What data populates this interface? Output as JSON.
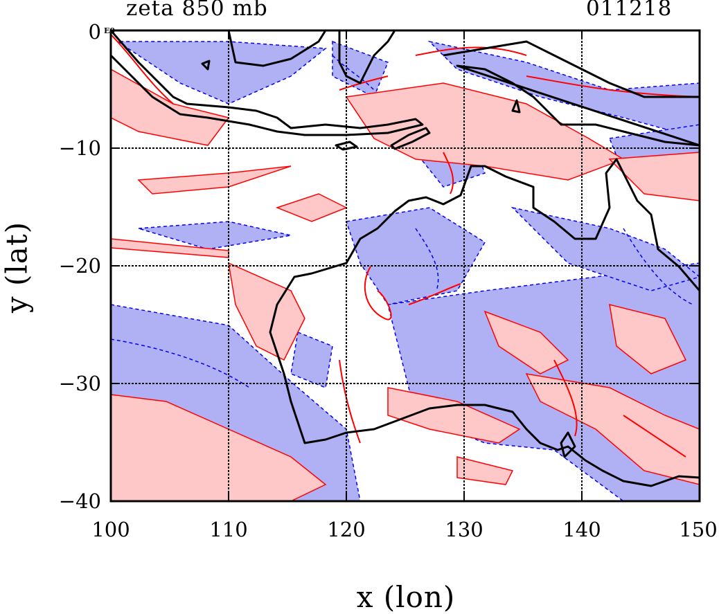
{
  "header": {
    "field_title": "zeta 850 mb",
    "date_code": "011218",
    "exponent_tag": "E0"
  },
  "axes": {
    "xlabel": "x (lon)",
    "ylabel": "y (lat)",
    "x_ticks": [
      "100",
      "110",
      "120",
      "130",
      "140",
      "150"
    ],
    "y_ticks": [
      "0",
      "−10",
      "−20",
      "−30",
      "−40"
    ],
    "x_range": [
      100,
      150
    ],
    "y_range": [
      -40,
      0
    ],
    "grid": true,
    "grid_style": "dashed black lines every 10 degrees"
  },
  "colors": {
    "positive_fill": "#ffc8c8",
    "positive_contour": "#ff0000",
    "negative_fill": "#b0b0f4",
    "negative_contour": "#0000ee",
    "coastline": "#000000"
  }
}
